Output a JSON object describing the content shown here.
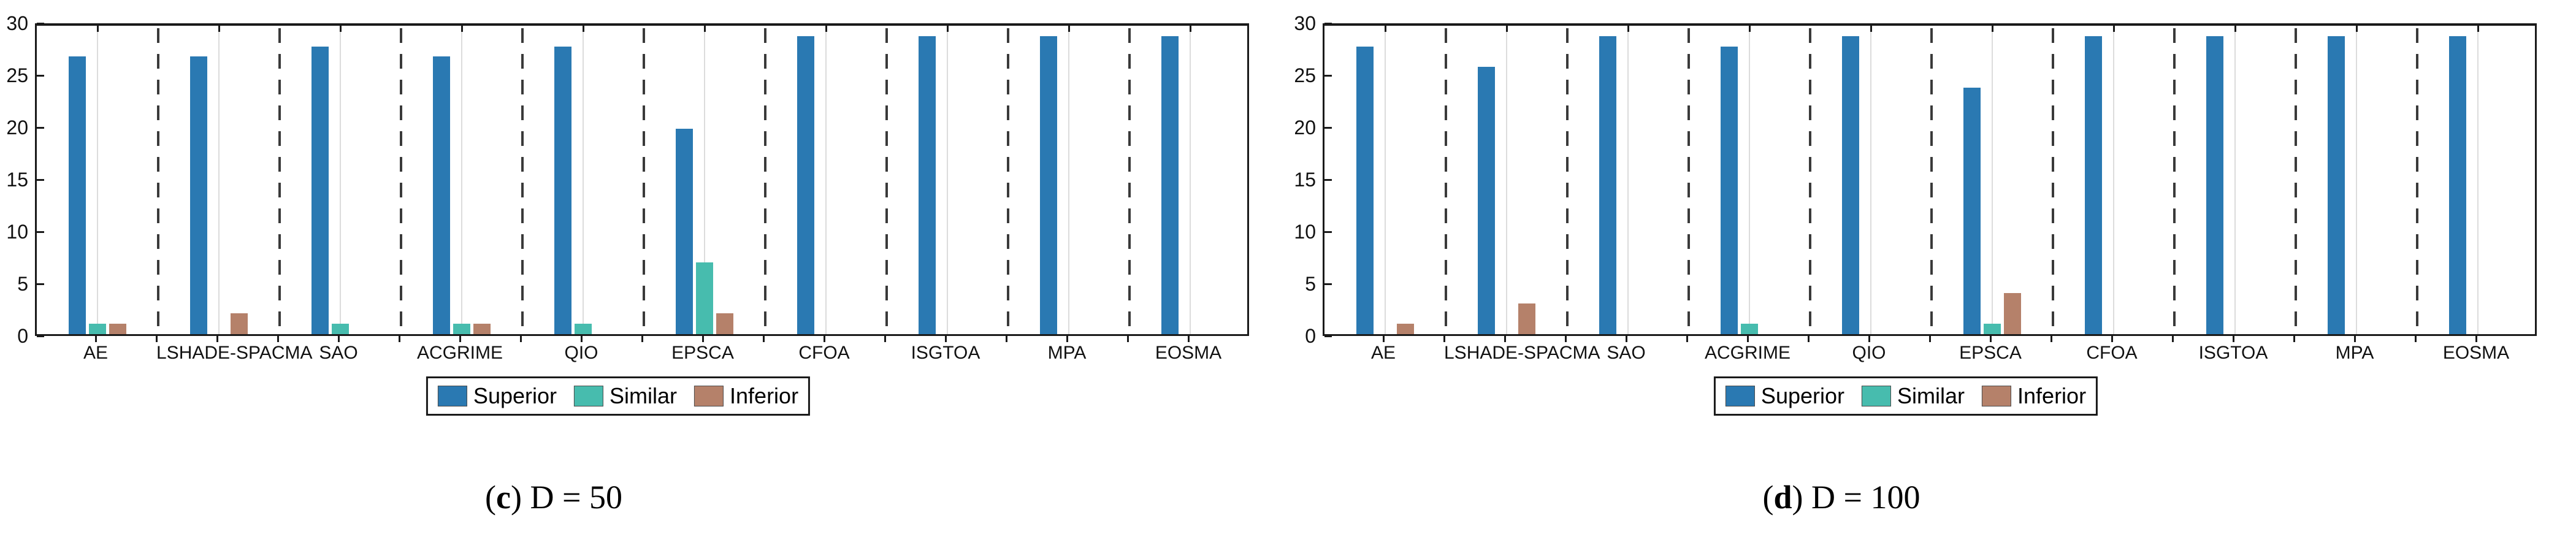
{
  "styles": {
    "axis_color": "#1a1a1a",
    "grid_color": "#dcdcdc",
    "separator_color": "#3a3a3a",
    "superior_color": "#2a79b2",
    "similar_color": "#47bcae",
    "inferior_color": "#b5816a"
  },
  "chart_data": [
    {
      "type": "bar",
      "caption": {
        "paren_open": "(",
        "letter": "c",
        "rest": ") D = 50"
      },
      "categories": [
        "AE",
        "LSHADE-SPACMA",
        "SAO",
        "ACGRIME",
        "QIO",
        "EPSCA",
        "CFOA",
        "ISGTOA",
        "MPA",
        "EOSMA"
      ],
      "series": [
        {
          "name": "Superior",
          "color": "#2a79b2",
          "values": [
            27,
            27,
            28,
            27,
            28,
            20,
            29,
            29,
            29,
            29
          ]
        },
        {
          "name": "Similar",
          "color": "#47bcae",
          "values": [
            1,
            0,
            1,
            1,
            1,
            7,
            0,
            0,
            0,
            0
          ]
        },
        {
          "name": "Inferior",
          "color": "#b5816a",
          "values": [
            1,
            2,
            0,
            1,
            0,
            2,
            0,
            0,
            0,
            0
          ]
        }
      ],
      "ylim": [
        0,
        30
      ],
      "yticks": [
        0,
        5,
        10,
        15,
        20,
        25,
        30
      ],
      "grid": "vertical-gridlines-at-category-centers, dashed-separators-between-groups",
      "legend_position": "below"
    },
    {
      "type": "bar",
      "caption": {
        "paren_open": "(",
        "letter": "d",
        "rest": ") D = 100"
      },
      "categories": [
        "AE",
        "LSHADE-SPACMA",
        "SAO",
        "ACGRIME",
        "QIO",
        "EPSCA",
        "CFOA",
        "ISGTOA",
        "MPA",
        "EOSMA"
      ],
      "series": [
        {
          "name": "Superior",
          "color": "#2a79b2",
          "values": [
            28,
            26,
            29,
            28,
            29,
            24,
            29,
            29,
            29,
            29
          ]
        },
        {
          "name": "Similar",
          "color": "#47bcae",
          "values": [
            0,
            0,
            0,
            1,
            0,
            1,
            0,
            0,
            0,
            0
          ]
        },
        {
          "name": "Inferior",
          "color": "#b5816a",
          "values": [
            1,
            3,
            0,
            0,
            0,
            4,
            0,
            0,
            0,
            0
          ]
        }
      ],
      "ylim": [
        0,
        30
      ],
      "yticks": [
        0,
        5,
        10,
        15,
        20,
        25,
        30
      ],
      "grid": "vertical-gridlines-at-category-centers, dashed-separators-between-groups",
      "legend_position": "below"
    }
  ]
}
